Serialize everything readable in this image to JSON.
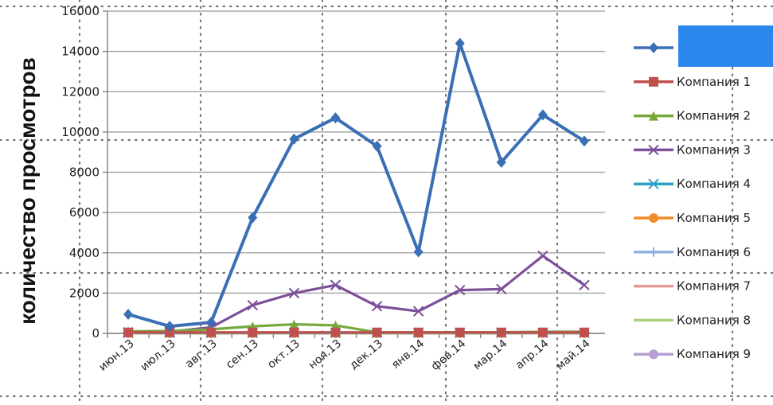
{
  "chart_data": {
    "type": "line",
    "title": "",
    "xlabel": "",
    "ylabel": "количество просмотров",
    "ylim": [
      0,
      16000
    ],
    "yticks": [
      0,
      2000,
      4000,
      6000,
      8000,
      10000,
      12000,
      14000,
      16000
    ],
    "grid": true,
    "legend_position": "right",
    "categories": [
      "июн.13",
      "июл.13",
      "авг.13",
      "сен.13",
      "окт.13",
      "ноя.13",
      "дек.13",
      "янв.14",
      "фев.14",
      "мар.14",
      "апр.14",
      "май.14"
    ],
    "series": [
      {
        "name": "",
        "color": "#3b6fb5",
        "marker": "diamond",
        "redacted": true,
        "values": [
          950,
          350,
          550,
          5750,
          9650,
          10700,
          9300,
          4050,
          14400,
          8500,
          10850,
          9550
        ]
      },
      {
        "name": "Компания 1",
        "color": "#c0504d",
        "marker": "square",
        "values": [
          50,
          50,
          50,
          50,
          50,
          50,
          50,
          50,
          50,
          50,
          50,
          50
        ]
      },
      {
        "name": "Компания 2",
        "color": "#77a83b",
        "marker": "triangle",
        "values": [
          100,
          120,
          200,
          350,
          450,
          400,
          50,
          50,
          50,
          50,
          80,
          80
        ]
      },
      {
        "name": "Компания 3",
        "color": "#7c4f9a",
        "marker": "x",
        "values": [
          50,
          80,
          300,
          1400,
          2000,
          2400,
          1350,
          1100,
          2150,
          2200,
          3850,
          2400
        ]
      },
      {
        "name": "Компания 4",
        "color": "#2fa2c2",
        "marker": "star",
        "values": [
          30,
          30,
          30,
          30,
          30,
          30,
          30,
          30,
          30,
          30,
          30,
          30
        ]
      },
      {
        "name": "Компания 5",
        "color": "#f28c28",
        "marker": "circle",
        "values": [
          20,
          20,
          20,
          20,
          20,
          20,
          20,
          20,
          20,
          20,
          20,
          20
        ]
      },
      {
        "name": "Компания 6",
        "color": "#8fb3e0",
        "marker": "plus",
        "values": [
          20,
          20,
          20,
          20,
          20,
          20,
          20,
          20,
          20,
          20,
          20,
          20
        ]
      },
      {
        "name": "Компания 7",
        "color": "#e69a96",
        "marker": "none",
        "values": [
          10,
          10,
          10,
          10,
          10,
          10,
          10,
          10,
          10,
          10,
          10,
          10
        ]
      },
      {
        "name": "Компания 8",
        "color": "#a7d07a",
        "marker": "none",
        "values": [
          10,
          10,
          10,
          10,
          10,
          10,
          10,
          10,
          10,
          10,
          10,
          10
        ]
      },
      {
        "name": "Компания 9",
        "color": "#b79fd1",
        "marker": "circle",
        "values": [
          10,
          10,
          10,
          10,
          10,
          10,
          10,
          10,
          10,
          10,
          10,
          10
        ]
      }
    ]
  }
}
